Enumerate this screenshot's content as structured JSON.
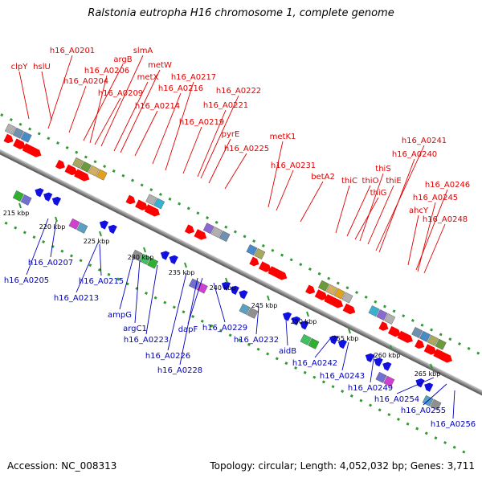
{
  "title": "Ralstonia eutropha H16 chromosome 1, complete genome",
  "footer": {
    "accession": "Accession: NC_008313",
    "topology": "Topology: circular; Length: 4,052,032 bp; Genes: 3,711"
  },
  "colors": {
    "top_label": "#e00000",
    "bottom_label": "#0000c0",
    "arrow": "#ff0000",
    "tick": "#339933",
    "backbone": "#808080"
  },
  "top_labels": [
    "clpY",
    "hslU",
    "h16_A0201",
    "argB",
    "h16_A0206",
    "h16_A0204",
    "slmA",
    "metW",
    "metX",
    "h16_A0209",
    "h16_A0217",
    "h16_A0216",
    "h16_A0214",
    "h16_A0222",
    "h16_A0221",
    "h16_A0219",
    "pyrE",
    "h16_A0225",
    "metK1",
    "h16_A0231",
    "betA2",
    "thiC",
    "thiO",
    "thiG",
    "thiS",
    "thiE",
    "h16_A0241",
    "h16_A0240",
    "h16_A0246",
    "h16_A0245",
    "ahcY",
    "h16_A0248"
  ],
  "bottom_labels": [
    "h16_A0207",
    "h16_A0205",
    "h16_A0215",
    "h16_A0213",
    "ampG",
    "argC1",
    "h16_A0223",
    "dapF",
    "h16_A0229",
    "h16_A0226",
    "h16_A0228",
    "h16_A0232",
    "aidB",
    "h16_A0242",
    "h16_A0243",
    "h16_A0249",
    "h16_A0254",
    "h16_A0255",
    "h16_A0256"
  ],
  "kbp_ticks": [
    "215 kbp",
    "220 kbp",
    "225 kbp",
    "230 kbp",
    "235 kbp",
    "240 kbp",
    "245 kbp",
    "250 kbp",
    "255 kbp",
    "260 kbp",
    "265 kbp"
  ]
}
